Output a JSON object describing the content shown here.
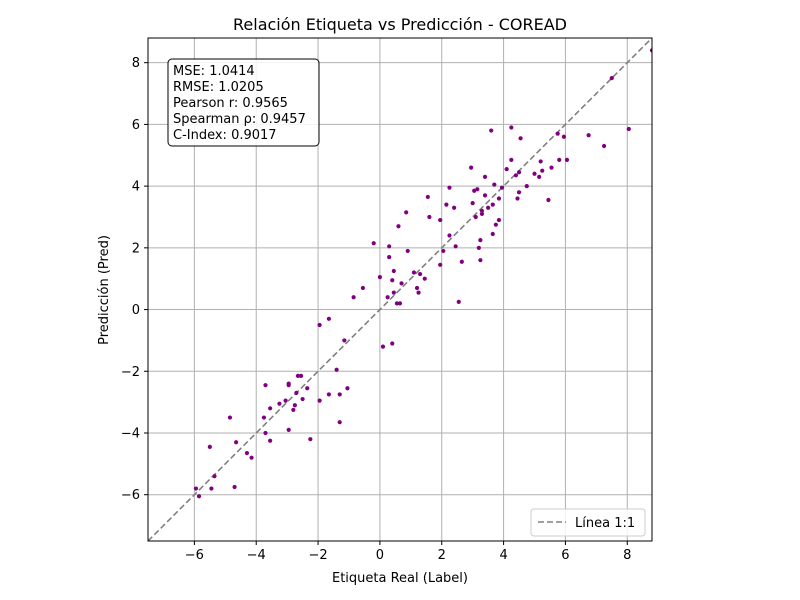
{
  "chart_data": {
    "type": "scatter",
    "title": "Relación Etiqueta vs Predicción - COREAD",
    "xlabel": "Etiqueta Real (Label)",
    "ylabel": "Predicción (Pred)",
    "xlim": [
      -7.5,
      8.8
    ],
    "ylim": [
      -7.5,
      8.8
    ],
    "xticks": [
      -6,
      -4,
      -2,
      0,
      2,
      4,
      6,
      8
    ],
    "yticks": [
      -6,
      -4,
      -2,
      0,
      2,
      4,
      6,
      8
    ],
    "xtick_labels": [
      "−6",
      "−4",
      "−2",
      "0",
      "2",
      "4",
      "6",
      "8"
    ],
    "ytick_labels": [
      "−6",
      "−4",
      "−2",
      "0",
      "2",
      "4",
      "6",
      "8"
    ],
    "grid": true,
    "legend": {
      "location": "bottom-right",
      "entries": [
        "Línea 1:1"
      ]
    },
    "stats_box": {
      "location": "top-left",
      "lines": [
        "MSE: 1.0414",
        "RMSE: 1.0205",
        "Pearson r: 0.9565",
        "Spearman ρ: 0.9457",
        "C-Index: 0.9017"
      ]
    },
    "series": [
      {
        "color": "#800080",
        "points": [
          [
            -5.95,
            -5.8
          ],
          [
            -5.85,
            -6.05
          ],
          [
            -5.45,
            -5.8
          ],
          [
            -5.5,
            -4.45
          ],
          [
            -5.35,
            -5.4
          ],
          [
            -4.85,
            -3.5
          ],
          [
            -4.7,
            -5.75
          ],
          [
            -4.65,
            -4.3
          ],
          [
            -4.3,
            -4.65
          ],
          [
            -4.15,
            -4.8
          ],
          [
            -3.7,
            -2.45
          ],
          [
            -3.75,
            -3.5
          ],
          [
            -3.7,
            -4.0
          ],
          [
            -3.55,
            -3.2
          ],
          [
            -3.55,
            -4.25
          ],
          [
            -3.25,
            -3.05
          ],
          [
            -3.05,
            -2.95
          ],
          [
            -2.95,
            -2.45
          ],
          [
            -2.95,
            -2.4
          ],
          [
            -2.95,
            -3.9
          ],
          [
            -2.8,
            -3.25
          ],
          [
            -2.75,
            -3.1
          ],
          [
            -2.7,
            -2.7
          ],
          [
            -2.65,
            -2.15
          ],
          [
            -2.55,
            -2.15
          ],
          [
            -2.5,
            -2.9
          ],
          [
            -2.35,
            -2.55
          ],
          [
            -2.25,
            -4.2
          ],
          [
            -1.95,
            -0.5
          ],
          [
            -1.95,
            -2.95
          ],
          [
            -1.65,
            -0.3
          ],
          [
            -1.65,
            -2.75
          ],
          [
            -1.4,
            -1.95
          ],
          [
            -1.3,
            -2.75
          ],
          [
            -1.3,
            -3.65
          ],
          [
            -1.15,
            -1.0
          ],
          [
            -1.05,
            -2.55
          ],
          [
            -0.85,
            0.4
          ],
          [
            -0.55,
            0.7
          ],
          [
            -0.2,
            2.15
          ],
          [
            0.0,
            1.05
          ],
          [
            0.1,
            -1.2
          ],
          [
            0.25,
            0.4
          ],
          [
            0.3,
            1.7
          ],
          [
            0.3,
            2.05
          ],
          [
            0.4,
            0.95
          ],
          [
            0.4,
            -1.1
          ],
          [
            0.45,
            1.25
          ],
          [
            0.45,
            0.55
          ],
          [
            0.55,
            0.2
          ],
          [
            0.6,
            2.7
          ],
          [
            0.65,
            0.2
          ],
          [
            0.7,
            0.85
          ],
          [
            0.85,
            3.15
          ],
          [
            0.9,
            1.9
          ],
          [
            1.1,
            1.2
          ],
          [
            1.2,
            0.7
          ],
          [
            1.25,
            0.55
          ],
          [
            1.3,
            1.15
          ],
          [
            1.45,
            1.0
          ],
          [
            1.55,
            3.65
          ],
          [
            1.6,
            3.0
          ],
          [
            1.95,
            2.9
          ],
          [
            1.95,
            1.45
          ],
          [
            2.05,
            1.9
          ],
          [
            2.15,
            3.4
          ],
          [
            2.25,
            3.95
          ],
          [
            2.25,
            2.4
          ],
          [
            2.4,
            3.3
          ],
          [
            2.45,
            2.05
          ],
          [
            2.55,
            0.25
          ],
          [
            2.65,
            1.55
          ],
          [
            2.95,
            4.6
          ],
          [
            3.0,
            3.45
          ],
          [
            3.05,
            3.85
          ],
          [
            3.1,
            3.0
          ],
          [
            3.15,
            3.9
          ],
          [
            3.2,
            2.0
          ],
          [
            3.25,
            1.6
          ],
          [
            3.25,
            2.25
          ],
          [
            3.3,
            3.2
          ],
          [
            3.3,
            3.1
          ],
          [
            3.4,
            3.7
          ],
          [
            3.4,
            4.3
          ],
          [
            3.5,
            3.3
          ],
          [
            3.6,
            5.8
          ],
          [
            3.65,
            2.45
          ],
          [
            3.65,
            3.4
          ],
          [
            3.7,
            4.05
          ],
          [
            3.75,
            2.75
          ],
          [
            3.85,
            3.6
          ],
          [
            3.85,
            2.9
          ],
          [
            3.95,
            3.95
          ],
          [
            4.1,
            4.55
          ],
          [
            4.25,
            4.85
          ],
          [
            4.25,
            5.9
          ],
          [
            4.4,
            4.35
          ],
          [
            4.45,
            3.6
          ],
          [
            4.5,
            4.45
          ],
          [
            4.5,
            3.8
          ],
          [
            4.55,
            5.55
          ],
          [
            4.75,
            4.0
          ],
          [
            5.0,
            4.4
          ],
          [
            5.15,
            4.3
          ],
          [
            5.2,
            4.8
          ],
          [
            5.25,
            4.5
          ],
          [
            5.45,
            3.55
          ],
          [
            5.55,
            4.6
          ],
          [
            5.75,
            5.7
          ],
          [
            5.8,
            4.85
          ],
          [
            5.95,
            5.6
          ],
          [
            6.05,
            4.85
          ],
          [
            6.75,
            5.65
          ],
          [
            7.25,
            5.3
          ],
          [
            7.5,
            7.5
          ],
          [
            8.05,
            5.85
          ],
          [
            8.8,
            8.4
          ]
        ]
      }
    ]
  }
}
